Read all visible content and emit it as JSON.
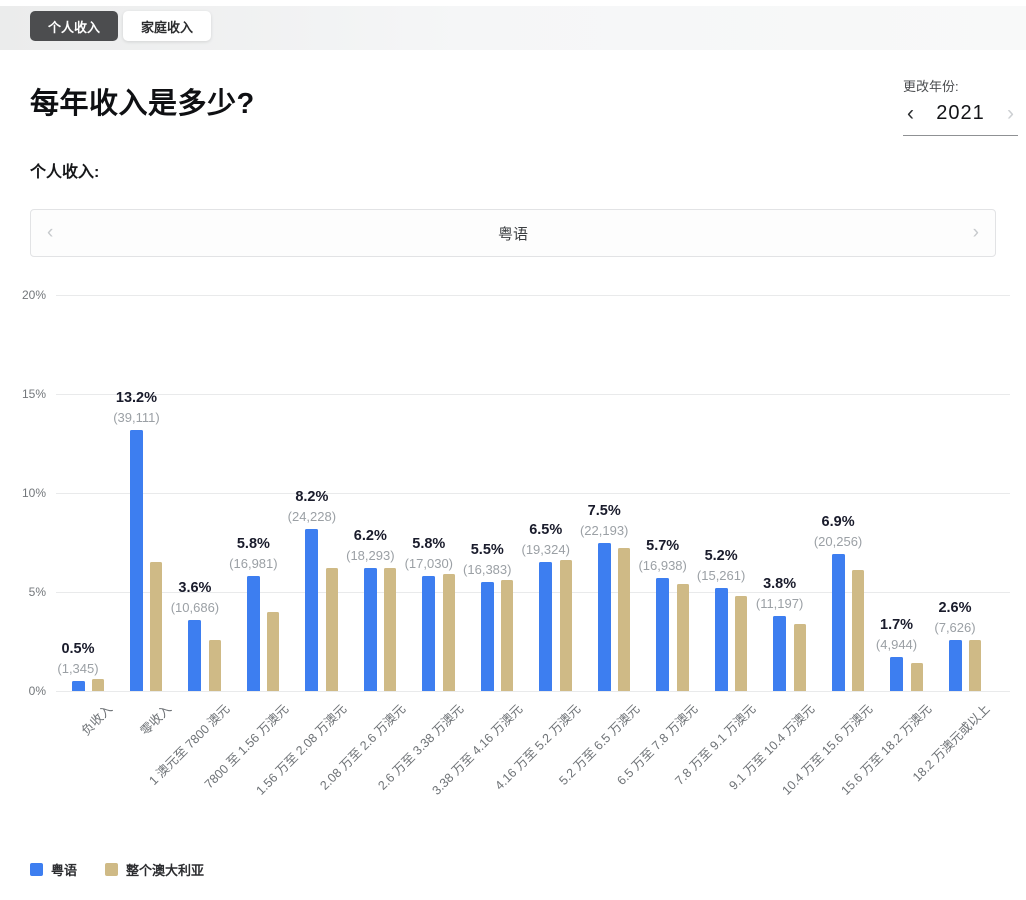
{
  "tabs": [
    {
      "label": "个人收入",
      "active": true
    },
    {
      "label": "家庭收入",
      "active": false
    }
  ],
  "title": "每年收入是多少?",
  "year_selector": {
    "label": "更改年份:",
    "year": "2021",
    "prev": "‹",
    "next": "›"
  },
  "section_label": "个人收入:",
  "carousel": {
    "selected": "粤语",
    "prev": "‹",
    "next": "›"
  },
  "chart_data": {
    "type": "bar",
    "title": "每年收入是多少?",
    "categories": [
      "负收入",
      "零收入",
      "1 澳元至 7800 澳元",
      "7800 至 1.56 万澳元",
      "1.56 万至 2.08 万澳元",
      "2.08 万至 2.6 万澳元",
      "2.6 万至 3.38 万澳元",
      "3.38 万至 4.16 万澳元",
      "4.16 万至 5.2 万澳元",
      "5.2 万至 6.5 万澳元",
      "6.5 万至 7.8 万澳元",
      "7.8 万至 9.1 万澳元",
      "9.1 万至 10.4 万澳元",
      "10.4 万至 15.6 万澳元",
      "15.6 万至 18.2 万澳元",
      "18.2 万澳元或以上"
    ],
    "series": [
      {
        "name": "粤语",
        "color": "#3d7ef0",
        "values": [
          0.5,
          13.2,
          3.6,
          5.8,
          8.2,
          6.2,
          5.8,
          5.5,
          6.5,
          7.5,
          5.7,
          5.2,
          3.8,
          6.9,
          1.7,
          2.6
        ],
        "pct_labels": [
          "0.5%",
          "13.2%",
          "3.6%",
          "5.8%",
          "8.2%",
          "6.2%",
          "5.8%",
          "5.5%",
          "6.5%",
          "7.5%",
          "5.7%",
          "5.2%",
          "3.8%",
          "6.9%",
          "1.7%",
          "2.6%"
        ],
        "count_labels": [
          "(1,345)",
          "(39,111)",
          "(10,686)",
          "(16,981)",
          "(24,228)",
          "(18,293)",
          "(17,030)",
          "(16,383)",
          "(19,324)",
          "(22,193)",
          "(16,938)",
          "(15,261)",
          "(11,197)",
          "(20,256)",
          "(4,944)",
          "(7,626)"
        ]
      },
      {
        "name": "整个澳大利亚",
        "color": "#cfba86",
        "values": [
          0.6,
          6.5,
          2.6,
          4.0,
          6.2,
          6.2,
          5.9,
          5.6,
          6.6,
          7.2,
          5.4,
          4.8,
          3.4,
          6.1,
          1.4,
          2.6
        ]
      }
    ],
    "xlabel": "",
    "ylabel": "",
    "ylim": [
      0,
      20
    ],
    "ytick_values": [
      0,
      5,
      10,
      15,
      20
    ],
    "ytick_labels": [
      "0%",
      "5%",
      "10%",
      "15%",
      "20%"
    ],
    "grid": true,
    "legend_position": "bottom"
  },
  "legend": [
    {
      "label": "粤语",
      "color": "#3d7ef0"
    },
    {
      "label": "整个澳大利亚",
      "color": "#cfba86"
    }
  ]
}
